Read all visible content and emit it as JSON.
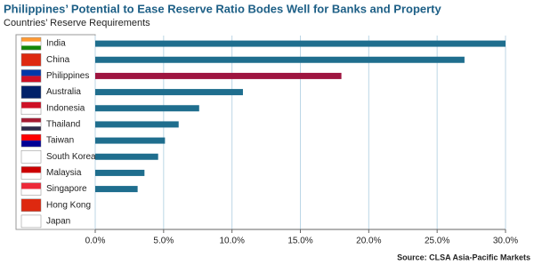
{
  "chart_data": {
    "type": "barh",
    "title": "Philippines’ Potential to Ease Reserve Ratio Bodes Well for Banks and Property",
    "subtitle": "Countries’ Reserve Requirements",
    "source": "Source: CLSA Asia-Pacific Markets",
    "categories": [
      "India",
      "China",
      "Philippines",
      "Australia",
      "Indonesia",
      "Thailand",
      "Taiwan",
      "South Korea",
      "Malaysia",
      "Singapore",
      "Hong Kong",
      "Japan"
    ],
    "values": [
      30,
      27,
      18,
      10.8,
      7.6,
      6.1,
      5.1,
      4.6,
      3.6,
      3.1,
      0,
      0
    ],
    "colors": [
      "#1f6e8e",
      "#1f6e8e",
      "#9e1540",
      "#1f6e8e",
      "#1f6e8e",
      "#1f6e8e",
      "#1f6e8e",
      "#1f6e8e",
      "#1f6e8e",
      "#1f6e8e",
      "#1f6e8e",
      "#1f6e8e"
    ],
    "xlim": [
      0,
      30
    ],
    "xticks": [
      {
        "value": 0,
        "label": "0.0%"
      },
      {
        "value": 5,
        "label": "5.0%"
      },
      {
        "value": 10,
        "label": "10.0%"
      },
      {
        "value": 15,
        "label": "15.0%"
      },
      {
        "value": 20,
        "label": "20.0%"
      },
      {
        "value": 25,
        "label": "25.0%"
      },
      {
        "value": 30,
        "label": "30.0%"
      }
    ],
    "grid": true
  }
}
